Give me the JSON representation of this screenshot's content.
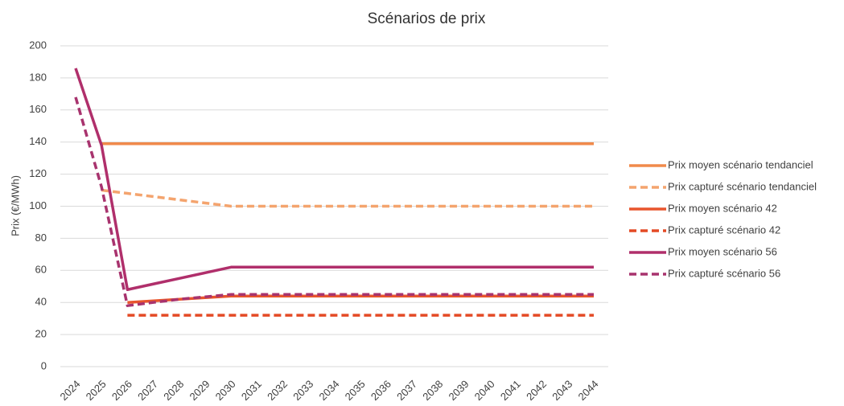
{
  "chart_data": {
    "type": "line",
    "title": "Scénarios de prix",
    "y_label": "Prix (€/MWh)",
    "categories": [
      "2024",
      "2025",
      "2026",
      "2027",
      "2028",
      "2029",
      "2030",
      "2031",
      "2032",
      "2033",
      "2034",
      "2035",
      "2036",
      "2037",
      "2038",
      "2039",
      "2040",
      "2041",
      "2042",
      "2043",
      "2044"
    ],
    "ylim": [
      0,
      200
    ],
    "yticks": [
      0,
      20,
      40,
      60,
      80,
      100,
      120,
      140,
      160,
      180,
      200
    ],
    "grid": true,
    "legend": "right",
    "series": [
      {
        "name": "Prix moyen scénario tendanciel",
        "color": "#f08a4b",
        "dash": false,
        "values": [
          null,
          139,
          139,
          139,
          139,
          139,
          139,
          139,
          139,
          139,
          139,
          139,
          139,
          139,
          139,
          139,
          139,
          139,
          139,
          139,
          139
        ]
      },
      {
        "name": "Prix capturé scénario tendanciel",
        "color": "#f4a46e",
        "dash": true,
        "values": [
          null,
          110,
          108,
          106,
          104,
          102,
          100,
          100,
          100,
          100,
          100,
          100,
          100,
          100,
          100,
          100,
          100,
          100,
          100,
          100,
          100
        ]
      },
      {
        "name": "Prix moyen scénario 42",
        "color": "#e8552d",
        "dash": false,
        "values": [
          null,
          null,
          40,
          41,
          42,
          43,
          44,
          44,
          44,
          44,
          44,
          44,
          44,
          44,
          44,
          44,
          44,
          44,
          44,
          44,
          44
        ]
      },
      {
        "name": "Prix capturé scénario 42",
        "color": "#e44a25",
        "dash": true,
        "values": [
          null,
          null,
          32,
          32,
          32,
          32,
          32,
          32,
          32,
          32,
          32,
          32,
          32,
          32,
          32,
          32,
          32,
          32,
          32,
          32,
          32
        ]
      },
      {
        "name": "Prix moyen scénario 56",
        "color": "#b02f6b",
        "dash": false,
        "values": [
          186,
          138,
          48,
          51.5,
          55,
          58.5,
          62,
          62,
          62,
          62,
          62,
          62,
          62,
          62,
          62,
          62,
          62,
          62,
          62,
          62,
          62
        ]
      },
      {
        "name": "Prix capturé scénario 56",
        "color": "#a8336e",
        "dash": true,
        "values": [
          168,
          112,
          38,
          40,
          42,
          43.5,
          45,
          45,
          45,
          45,
          45,
          45,
          45,
          45,
          45,
          45,
          45,
          45,
          45,
          45,
          45
        ]
      }
    ]
  }
}
